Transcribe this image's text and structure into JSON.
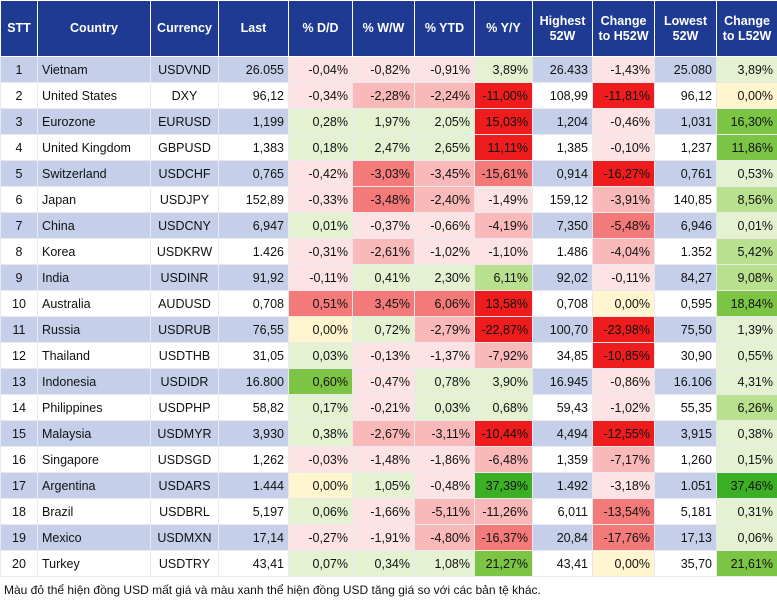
{
  "table": {
    "header": [
      "STT",
      "Country",
      "Currency",
      "Last",
      "% D/D",
      "% W/W",
      "% YTD",
      "% Y/Y",
      "Highest 52W",
      "Change to H52W",
      "Lowest 52W",
      "Change to L52W"
    ],
    "rows": [
      [
        "1",
        "Vietnam",
        "USDVND",
        "26.055",
        "-0,04%",
        "-0,82%",
        "-0,91%",
        "3,89%",
        "26.433",
        "-1,43%",
        "25.080",
        "3,89%"
      ],
      [
        "2",
        "United States",
        "DXY",
        "96,12",
        "-0,34%",
        "-2,28%",
        "-2,24%",
        "-11,00%",
        "108,99",
        "-11,81%",
        "96,12",
        "0,00%"
      ],
      [
        "3",
        "Eurozone",
        "EURUSD",
        "1,199",
        "0,28%",
        "1,97%",
        "2,05%",
        "15,03%",
        "1,204",
        "-0,46%",
        "1,031",
        "16,30%"
      ],
      [
        "4",
        "United Kingdom",
        "GBPUSD",
        "1,383",
        "0,18%",
        "2,47%",
        "2,65%",
        "11,11%",
        "1,385",
        "-0,10%",
        "1,237",
        "11,86%"
      ],
      [
        "5",
        "Switzerland",
        "USDCHF",
        "0,765",
        "-0,42%",
        "-3,03%",
        "-3,45%",
        "-15,61%",
        "0,914",
        "-16,27%",
        "0,761",
        "0,53%"
      ],
      [
        "6",
        "Japan",
        "USDJPY",
        "152,89",
        "-0,33%",
        "-3,48%",
        "-2,40%",
        "-1,49%",
        "159,12",
        "-3,91%",
        "140,85",
        "8,56%"
      ],
      [
        "7",
        "China",
        "USDCNY",
        "6,947",
        "0,01%",
        "-0,37%",
        "-0,66%",
        "-4,19%",
        "7,350",
        "-5,48%",
        "6,946",
        "0,01%"
      ],
      [
        "8",
        "Korea",
        "USDKRW",
        "1.426",
        "-0,31%",
        "-2,61%",
        "-1,02%",
        "-1,10%",
        "1.486",
        "-4,04%",
        "1.352",
        "5,42%"
      ],
      [
        "9",
        "India",
        "USDINR",
        "91,92",
        "-0,11%",
        "0,41%",
        "2,30%",
        "6,11%",
        "92,02",
        "-0,11%",
        "84,27",
        "9,08%"
      ],
      [
        "10",
        "Australia",
        "AUDUSD",
        "0,708",
        "0,51%",
        "3,45%",
        "6,06%",
        "13,58%",
        "0,708",
        "0,00%",
        "0,595",
        "18,84%"
      ],
      [
        "11",
        "Russia",
        "USDRUB",
        "76,55",
        "0,00%",
        "0,72%",
        "-2,79%",
        "-22,87%",
        "100,70",
        "-23,98%",
        "75,50",
        "1,39%"
      ],
      [
        "12",
        "Thailand",
        "USDTHB",
        "31,05",
        "0,03%",
        "-0,13%",
        "-1,37%",
        "-7,92%",
        "34,85",
        "-10,85%",
        "30,90",
        "0,55%"
      ],
      [
        "13",
        "Indonesia",
        "USDIDR",
        "16.800",
        "0,60%",
        "-0,47%",
        "0,78%",
        "3,90%",
        "16.945",
        "-0,86%",
        "16.106",
        "4,31%"
      ],
      [
        "14",
        "Philippines",
        "USDPHP",
        "58,82",
        "0,17%",
        "-0,21%",
        "0,03%",
        "0,68%",
        "59,43",
        "-1,02%",
        "55,35",
        "6,26%"
      ],
      [
        "15",
        "Malaysia",
        "USDMYR",
        "3,930",
        "0,38%",
        "-2,67%",
        "-3,11%",
        "-10,44%",
        "4,494",
        "-12,55%",
        "3,915",
        "0,38%"
      ],
      [
        "16",
        "Singapore",
        "USDSGD",
        "1,262",
        "-0,03%",
        "-1,48%",
        "-1,86%",
        "-6,48%",
        "1,359",
        "-7,17%",
        "1,260",
        "0,15%"
      ],
      [
        "17",
        "Argentina",
        "USDARS",
        "1.444",
        "0,00%",
        "1,05%",
        "-0,48%",
        "37,39%",
        "1.492",
        "-3,18%",
        "1.051",
        "37,46%"
      ],
      [
        "18",
        "Brazil",
        "USDBRL",
        "5,197",
        "0,06%",
        "-1,66%",
        "-5,11%",
        "-11,26%",
        "6,011",
        "-13,54%",
        "5,181",
        "0,31%"
      ],
      [
        "19",
        "Mexico",
        "USDMXN",
        "17,14",
        "-0,27%",
        "-1,91%",
        "-4,80%",
        "-16,37%",
        "20,84",
        "-17,76%",
        "17,13",
        "0,06%"
      ],
      [
        "20",
        "Turkey",
        "USDTRY",
        "43,41",
        "0,07%",
        "0,34%",
        "1,08%",
        "21,27%",
        "43,41",
        "0,00%",
        "35,70",
        "21,61%"
      ]
    ],
    "cell_colors": [
      [
        "#fde3e3",
        "#fde3e3",
        "#fde3e3",
        "#e4f2d2",
        "#fde3e3",
        "#e4f2d2"
      ],
      [
        "#fde3e3",
        "#f9b9b9",
        "#f9b9b9",
        "#ee1c1c",
        "#ee1c1c",
        "#fff6d0"
      ],
      [
        "#e4f2d2",
        "#e4f2d2",
        "#e4f2d2",
        "#ee1c1c",
        "#fde3e3",
        "#7cc544"
      ],
      [
        "#e4f2d2",
        "#e4f2d2",
        "#e4f2d2",
        "#ee1c1c",
        "#fde3e3",
        "#7cc544"
      ],
      [
        "#fde3e3",
        "#f47a7a",
        "#f9b9b9",
        "#f47a7a",
        "#ee1c1c",
        "#e4f2d2"
      ],
      [
        "#fde3e3",
        "#f47a7a",
        "#f9b9b9",
        "#fde3e3",
        "#f9b9b9",
        "#b9e08f"
      ],
      [
        "#e4f2d2",
        "#fde3e3",
        "#fde3e3",
        "#f9b9b9",
        "#f47a7a",
        "#e4f2d2"
      ],
      [
        "#fde3e3",
        "#f9b9b9",
        "#fde3e3",
        "#fde3e3",
        "#f9b9b9",
        "#b9e08f"
      ],
      [
        "#fde3e3",
        "#e4f2d2",
        "#e4f2d2",
        "#b9e08f",
        "#fde3e3",
        "#b9e08f"
      ],
      [
        "#f47a7a",
        "#f47a7a",
        "#f47a7a",
        "#ee1c1c",
        "#fff6d0",
        "#7cc544"
      ],
      [
        "#fff6d0",
        "#e4f2d2",
        "#f9b9b9",
        "#ee1c1c",
        "#ee1c1c",
        "#e4f2d2"
      ],
      [
        "#e4f2d2",
        "#fde3e3",
        "#fde3e3",
        "#f9b9b9",
        "#ee1c1c",
        "#e4f2d2"
      ],
      [
        "#7cc544",
        "#fde3e3",
        "#e4f2d2",
        "#e4f2d2",
        "#fde3e3",
        "#e4f2d2"
      ],
      [
        "#e4f2d2",
        "#fde3e3",
        "#e4f2d2",
        "#e4f2d2",
        "#fde3e3",
        "#b9e08f"
      ],
      [
        "#e4f2d2",
        "#f9b9b9",
        "#f9b9b9",
        "#ee1c1c",
        "#ee1c1c",
        "#e4f2d2"
      ],
      [
        "#fde3e3",
        "#fde3e3",
        "#fde3e3",
        "#f9b9b9",
        "#f9b9b9",
        "#e4f2d2"
      ],
      [
        "#fff6d0",
        "#e4f2d2",
        "#fde3e3",
        "#3cb024",
        "#fde3e3",
        "#3cb024"
      ],
      [
        "#e4f2d2",
        "#fde3e3",
        "#f9b9b9",
        "#f9b9b9",
        "#f47a7a",
        "#e4f2d2"
      ],
      [
        "#fde3e3",
        "#fde3e3",
        "#f9b9b9",
        "#f47a7a",
        "#f47a7a",
        "#e4f2d2"
      ],
      [
        "#e4f2d2",
        "#e4f2d2",
        "#e4f2d2",
        "#7cc544",
        "#fff6d0",
        "#7cc544"
      ]
    ]
  },
  "footer": "Màu đỏ thể hiện đồng USD mất giá và màu xanh thể hiện đồng USD tăng giá so với các bản tệ khác."
}
